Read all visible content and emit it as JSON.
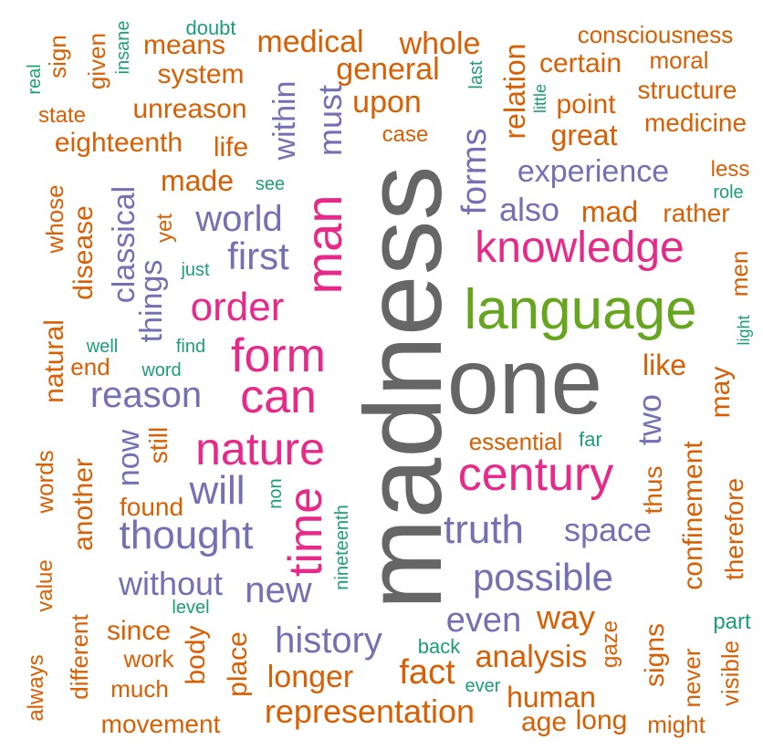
{
  "palette": {
    "teal": "#1b9e77",
    "orange": "#d95f02",
    "purple": "#7570b3",
    "pink": "#e7298a",
    "green": "#66a61e",
    "gray": "#666666"
  },
  "words": [
    {
      "text": "madness",
      "color": "gray"
    },
    {
      "text": "one",
      "color": "gray"
    },
    {
      "text": "language",
      "color": "green"
    },
    {
      "text": "knowledge",
      "color": "pink"
    },
    {
      "text": "century",
      "color": "pink"
    },
    {
      "text": "nature",
      "color": "pink"
    },
    {
      "text": "form",
      "color": "pink"
    },
    {
      "text": "can",
      "color": "pink"
    },
    {
      "text": "man",
      "color": "pink"
    },
    {
      "text": "order",
      "color": "pink"
    },
    {
      "text": "time",
      "color": "pink"
    },
    {
      "text": "world",
      "color": "purple"
    },
    {
      "text": "first",
      "color": "purple"
    },
    {
      "text": "reason",
      "color": "purple"
    },
    {
      "text": "will",
      "color": "purple"
    },
    {
      "text": "thought",
      "color": "purple"
    },
    {
      "text": "truth",
      "color": "purple"
    },
    {
      "text": "possible",
      "color": "purple"
    },
    {
      "text": "space",
      "color": "purple"
    },
    {
      "text": "experience",
      "color": "purple"
    },
    {
      "text": "forms",
      "color": "purple"
    },
    {
      "text": "must",
      "color": "purple"
    },
    {
      "text": "within",
      "color": "purple"
    },
    {
      "text": "classical",
      "color": "purple"
    },
    {
      "text": "things",
      "color": "purple"
    },
    {
      "text": "now",
      "color": "purple"
    },
    {
      "text": "history",
      "color": "purple"
    },
    {
      "text": "new",
      "color": "purple"
    },
    {
      "text": "without",
      "color": "purple"
    },
    {
      "text": "even",
      "color": "purple"
    },
    {
      "text": "two",
      "color": "purple"
    },
    {
      "text": "also",
      "color": "purple"
    },
    {
      "text": "representation",
      "color": "orange"
    },
    {
      "text": "medical",
      "color": "orange"
    },
    {
      "text": "whole",
      "color": "orange"
    },
    {
      "text": "general",
      "color": "orange"
    },
    {
      "text": "upon",
      "color": "orange"
    },
    {
      "text": "means",
      "color": "orange"
    },
    {
      "text": "system",
      "color": "orange"
    },
    {
      "text": "unreason",
      "color": "orange"
    },
    {
      "text": "eighteenth",
      "color": "orange"
    },
    {
      "text": "life",
      "color": "orange"
    },
    {
      "text": "made",
      "color": "orange"
    },
    {
      "text": "consciousness",
      "color": "orange"
    },
    {
      "text": "certain",
      "color": "orange"
    },
    {
      "text": "moral",
      "color": "orange"
    },
    {
      "text": "structure",
      "color": "orange"
    },
    {
      "text": "point",
      "color": "orange"
    },
    {
      "text": "medicine",
      "color": "orange"
    },
    {
      "text": "great",
      "color": "orange"
    },
    {
      "text": "relation",
      "color": "orange"
    },
    {
      "text": "case",
      "color": "orange"
    },
    {
      "text": "less",
      "color": "orange"
    },
    {
      "text": "mad",
      "color": "orange"
    },
    {
      "text": "rather",
      "color": "orange"
    },
    {
      "text": "men",
      "color": "orange"
    },
    {
      "text": "like",
      "color": "orange"
    },
    {
      "text": "may",
      "color": "orange"
    },
    {
      "text": "essential",
      "color": "orange"
    },
    {
      "text": "confinement",
      "color": "orange"
    },
    {
      "text": "thus",
      "color": "orange"
    },
    {
      "text": "therefore",
      "color": "orange"
    },
    {
      "text": "way",
      "color": "orange"
    },
    {
      "text": "analysis",
      "color": "orange"
    },
    {
      "text": "fact",
      "color": "orange"
    },
    {
      "text": "longer",
      "color": "orange"
    },
    {
      "text": "human",
      "color": "orange"
    },
    {
      "text": "age",
      "color": "orange"
    },
    {
      "text": "long",
      "color": "orange"
    },
    {
      "text": "might",
      "color": "orange"
    },
    {
      "text": "signs",
      "color": "orange"
    },
    {
      "text": "gaze",
      "color": "orange"
    },
    {
      "text": "never",
      "color": "orange"
    },
    {
      "text": "visible",
      "color": "orange"
    },
    {
      "text": "movement",
      "color": "orange"
    },
    {
      "text": "much",
      "color": "orange"
    },
    {
      "text": "work",
      "color": "orange"
    },
    {
      "text": "since",
      "color": "orange"
    },
    {
      "text": "body",
      "color": "orange"
    },
    {
      "text": "place",
      "color": "orange"
    },
    {
      "text": "different",
      "color": "orange"
    },
    {
      "text": "always",
      "color": "orange"
    },
    {
      "text": "value",
      "color": "orange"
    },
    {
      "text": "words",
      "color": "orange"
    },
    {
      "text": "another",
      "color": "orange"
    },
    {
      "text": "found",
      "color": "orange"
    },
    {
      "text": "still",
      "color": "orange"
    },
    {
      "text": "natural",
      "color": "orange"
    },
    {
      "text": "end",
      "color": "orange"
    },
    {
      "text": "disease",
      "color": "orange"
    },
    {
      "text": "whose",
      "color": "orange"
    },
    {
      "text": "state",
      "color": "orange"
    },
    {
      "text": "given",
      "color": "orange"
    },
    {
      "text": "sign",
      "color": "orange"
    },
    {
      "text": "yet",
      "color": "orange"
    },
    {
      "text": "real",
      "color": "teal"
    },
    {
      "text": "insane",
      "color": "teal"
    },
    {
      "text": "doubt",
      "color": "teal"
    },
    {
      "text": "last",
      "color": "teal"
    },
    {
      "text": "little",
      "color": "teal"
    },
    {
      "text": "see",
      "color": "teal"
    },
    {
      "text": "role",
      "color": "teal"
    },
    {
      "text": "just",
      "color": "teal"
    },
    {
      "text": "light",
      "color": "teal"
    },
    {
      "text": "well",
      "color": "teal"
    },
    {
      "text": "find",
      "color": "teal"
    },
    {
      "text": "word",
      "color": "teal"
    },
    {
      "text": "far",
      "color": "teal"
    },
    {
      "text": "non",
      "color": "teal"
    },
    {
      "text": "nineteenth",
      "color": "teal"
    },
    {
      "text": "level",
      "color": "teal"
    },
    {
      "text": "back",
      "color": "teal"
    },
    {
      "text": "ever",
      "color": "teal"
    },
    {
      "text": "part",
      "color": "teal"
    }
  ]
}
